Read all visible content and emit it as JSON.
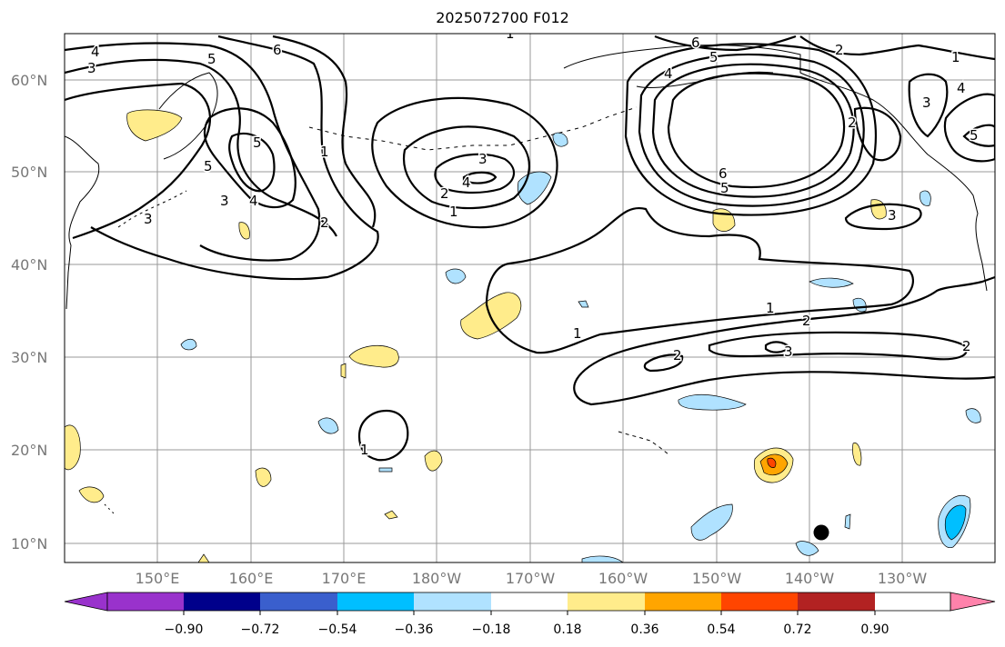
{
  "title": "2025072700 F012",
  "lat_labels": [
    "60°N",
    "50°N",
    "40°N",
    "30°N",
    "20°N",
    "10°N"
  ],
  "lon_labels": [
    "150°E",
    "160°E",
    "170°E",
    "180°W",
    "170°W",
    "160°W",
    "150°W",
    "140°W",
    "130°W"
  ],
  "colorbar": {
    "colors": [
      "#9932cc",
      "#00008b",
      "#3a5fcd",
      "#00bfff",
      "#b0e2ff",
      "#ffffff",
      "#ffec8b",
      "#ffa500",
      "#ff4500",
      "#b22222",
      "#ff82ab"
    ],
    "tick_labels": [
      "−0.90",
      "−0.72",
      "−0.54",
      "−0.36",
      "−0.18",
      "0.18",
      "0.36",
      "0.54",
      "0.72",
      "0.90"
    ]
  },
  "contour_labels": [
    "4",
    "3",
    "6",
    "5",
    "5",
    "1",
    "5",
    "3",
    "4",
    "1",
    "2",
    "3",
    "3",
    "2",
    "4",
    "1",
    "6",
    "5",
    "4",
    "6",
    "5",
    "2",
    "1",
    "3",
    "4",
    "5",
    "3",
    "2",
    "1",
    "1",
    "2",
    "2",
    "3",
    "2",
    "1"
  ],
  "contour_color": "#000000",
  "marker_color": "#000000"
}
